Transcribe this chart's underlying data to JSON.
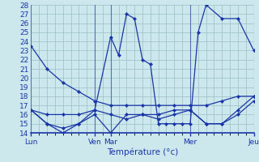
{
  "title": "Température (°c)",
  "background_color": "#cce8ec",
  "grid_color": "#9bbec2",
  "line_color": "#1a35a8",
  "tick_color": "#1a35a8",
  "spine_color": "#1a35a8",
  "xtick_major_positions": [
    0,
    16,
    20,
    40,
    56
  ],
  "xtick_major_labels": [
    "Lun",
    "Ven",
    "Mar",
    "Mer",
    "Jeu"
  ],
  "xlim": [
    0,
    56
  ],
  "ylim": [
    14,
    28
  ],
  "yticks": [
    14,
    15,
    16,
    17,
    18,
    19,
    20,
    21,
    22,
    23,
    24,
    25,
    26,
    27,
    28
  ],
  "minor_xticks": [
    0,
    2,
    4,
    6,
    8,
    10,
    12,
    14,
    16,
    18,
    20,
    22,
    24,
    26,
    28,
    30,
    32,
    34,
    36,
    38,
    40,
    42,
    44,
    46,
    48,
    50,
    52,
    54,
    56
  ],
  "series": [
    {
      "x": [
        0,
        4,
        8,
        12,
        16,
        20,
        24,
        28,
        32,
        36,
        40,
        44,
        48,
        52,
        56
      ],
      "y": [
        23.5,
        21,
        19.5,
        18.5,
        17.5,
        17,
        17,
        17,
        17,
        17,
        17,
        17,
        17.5,
        18,
        18
      ]
    },
    {
      "x": [
        0,
        4,
        8,
        12,
        16,
        20,
        22,
        24,
        26,
        28,
        30,
        32,
        34,
        36,
        38,
        40,
        42,
        44,
        48,
        52,
        56
      ],
      "y": [
        16.5,
        15,
        14,
        15,
        16.5,
        24.5,
        22.5,
        27,
        26.5,
        22,
        21.5,
        15,
        15,
        15,
        15,
        15,
        25,
        28,
        26.5,
        26.5,
        23
      ]
    },
    {
      "x": [
        0,
        4,
        8,
        12,
        16,
        20,
        24,
        28,
        32,
        36,
        40,
        44,
        48,
        52,
        56
      ],
      "y": [
        16.5,
        16,
        16,
        16,
        16.5,
        16,
        15.5,
        16,
        16,
        16.5,
        16.5,
        15,
        15,
        16.5,
        18
      ]
    },
    {
      "x": [
        0,
        4,
        8,
        12,
        16,
        20,
        24,
        28,
        32,
        36,
        40,
        44,
        48,
        52,
        56
      ],
      "y": [
        16.5,
        15,
        14.5,
        15,
        16,
        14,
        16,
        16,
        15.5,
        16,
        16.5,
        15,
        15,
        16,
        17.5
      ]
    }
  ]
}
